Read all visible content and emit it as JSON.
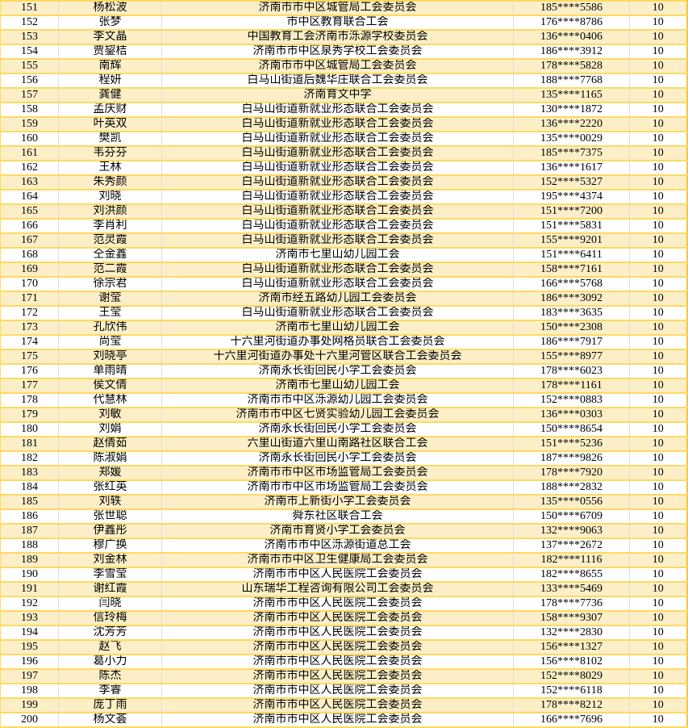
{
  "table": {
    "column_names": [
      "cell-index",
      "cell-name",
      "cell-organization",
      "cell-phone",
      "cell-points"
    ],
    "rows": [
      [
        "151",
        "杨松波",
        "济南市市中区城管局工会委员会",
        "185****5586",
        "10"
      ],
      [
        "152",
        "张梦",
        "市中区教育联合工会",
        "176****8786",
        "10"
      ],
      [
        "153",
        "李文晶",
        "中国教育工会济南市泺源学校委员会",
        "136****0406",
        "10"
      ],
      [
        "154",
        "贾鋆桔",
        "济南市市中区泉秀学校工会委员会",
        "186****3912",
        "10"
      ],
      [
        "155",
        "南辉",
        "济南市市中区城管局工会委员会",
        "178****5828",
        "10"
      ],
      [
        "156",
        "程妍",
        "白马山街道后魏华庄联合工会委员会",
        "188****7768",
        "10"
      ],
      [
        "157",
        "龚健",
        "济南育文中学",
        "135****1165",
        "10"
      ],
      [
        "158",
        "孟庆财",
        "白马山街道新就业形态联合工会委员会",
        "130****1872",
        "10"
      ],
      [
        "159",
        "叶英双",
        "白马山街道新就业形态联合工会委员会",
        "136****2220",
        "10"
      ],
      [
        "160",
        "樊凯",
        "白马山街道新就业形态联合工会委员会",
        "135****0029",
        "10"
      ],
      [
        "161",
        "韦芬芬",
        "白马山街道新就业形态联合工会委员会",
        "185****7375",
        "10"
      ],
      [
        "162",
        "王林",
        "白马山街道新就业形态联合工会委员会",
        "136****1617",
        "10"
      ],
      [
        "163",
        "朱秀颜",
        "白马山街道新就业形态联合工会委员会",
        "152****5327",
        "10"
      ],
      [
        "164",
        "刘晓",
        "白马山街道新就业形态联合工会委员会",
        "195****4374",
        "10"
      ],
      [
        "165",
        "刘洪颜",
        "白马山街道新就业形态联合工会委员会",
        "151****7200",
        "10"
      ],
      [
        "166",
        "李肖利",
        "白马山街道新就业形态联合工会委员会",
        "151****5831",
        "10"
      ],
      [
        "167",
        "范灵霞",
        "白马山街道新就业形态联合工会委员会",
        "155****9201",
        "10"
      ],
      [
        "168",
        "仝金鑫",
        "济南市七里山幼儿园工会",
        "151****6411",
        "10"
      ],
      [
        "169",
        "范二霞",
        "白马山街道新就业形态联合工会委员会",
        "158****7161",
        "10"
      ],
      [
        "170",
        "徐宗君",
        "白马山街道新就业形态联合工会委员会",
        "166****5768",
        "10"
      ],
      [
        "171",
        "谢莹",
        "济南市经五路幼儿园工会委员会",
        "186****3092",
        "10"
      ],
      [
        "172",
        "王莹",
        "白马山街道新就业形态联合工会委员会",
        "183****3635",
        "10"
      ],
      [
        "173",
        "孔欣伟",
        "济南市七里山幼儿园工会",
        "150****2308",
        "10"
      ],
      [
        "174",
        "尚莹",
        "十六里河街道办事处网格员联合工会委员会",
        "186****7917",
        "10"
      ],
      [
        "175",
        "刘晓亭",
        "十六里河街道办事处十六里河管区联合工会委员会",
        "155****8977",
        "10"
      ],
      [
        "176",
        "单雨晴",
        "济南永长街回民小学工会委员会",
        "178****6023",
        "10"
      ],
      [
        "177",
        "侯文倩",
        "济南市七里山幼儿园工会",
        "178****1161",
        "10"
      ],
      [
        "178",
        "代慧林",
        "济南市市中区泺源幼儿园工会委员会",
        "152****0883",
        "10"
      ],
      [
        "179",
        "刘敏",
        "济南市市中区七贤实验幼儿园工会委员会",
        "136****0303",
        "10"
      ],
      [
        "180",
        "刘娟",
        "济南永长街回民小学工会委员会",
        "150****8654",
        "10"
      ],
      [
        "181",
        "赵倩茹",
        "六里山街道六里山南路社区联合工会",
        "151****5236",
        "10"
      ],
      [
        "182",
        "陈淑娟",
        "济南永长街回民小学工会委员会",
        "187****9826",
        "10"
      ],
      [
        "183",
        "郑媛",
        "济南市市中区市场监管局工会委员会",
        "178****7920",
        "10"
      ],
      [
        "184",
        "张红英",
        "济南市市中区市场监管局工会委员会",
        "188****2832",
        "10"
      ],
      [
        "185",
        "刘轶",
        "济南市上新街小学工会委员会",
        "135****0556",
        "10"
      ],
      [
        "186",
        "张世聪",
        "舜东社区联合工会",
        "150****6709",
        "10"
      ],
      [
        "187",
        "伊鑫彤",
        "济南市育贤小学工会委员会",
        "132****9063",
        "10"
      ],
      [
        "188",
        "穆广换",
        "济南市市中区泺源街道总工会",
        "137****2672",
        "10"
      ],
      [
        "189",
        "刘金林",
        "济南市市中区卫生健康局工会委员会",
        "182****1116",
        "10"
      ],
      [
        "190",
        "李雪莹",
        "济南市市中区人民医院工会委员会",
        "182****8655",
        "10"
      ],
      [
        "191",
        "谢红霞",
        "山东瑞华工程咨询有限公司工会委员会",
        "133****5469",
        "10"
      ],
      [
        "192",
        "闫晓",
        "济南市市中区人民医院工会委员会",
        "178****7736",
        "10"
      ],
      [
        "193",
        "信玲梅",
        "济南市市中区人民医院工会委员会",
        "158****9307",
        "10"
      ],
      [
        "194",
        "沈芳芳",
        "济南市市中区人民医院工会委员会",
        "132****2830",
        "10"
      ],
      [
        "195",
        "赵飞",
        "济南市市中区人民医院工会委员会",
        "156****1327",
        "10"
      ],
      [
        "196",
        "葛小力",
        "济南市市中区人民医院工会委员会",
        "156****8102",
        "10"
      ],
      [
        "197",
        "陈杰",
        "济南市市中区人民医院工会委员会",
        "152****8029",
        "10"
      ],
      [
        "198",
        "李睿",
        "济南市市中区人民医院工会委员会",
        "152****6118",
        "10"
      ],
      [
        "199",
        "庞丁雨",
        "济南市市中区人民医院工会委员会",
        "178****8212",
        "10"
      ],
      [
        "200",
        "杨文荟",
        "济南市市中区人民医院工会委员会",
        "166****7696",
        "10"
      ]
    ]
  },
  "colors": {
    "row_odd_bg": "#FCEFC8",
    "row_even_bg": "#FFFFFF",
    "grid_horizontal": "#FFD95F",
    "grid_vertical": "#DCDCDC",
    "outer_border": "#FFC430",
    "text": "#000000"
  }
}
